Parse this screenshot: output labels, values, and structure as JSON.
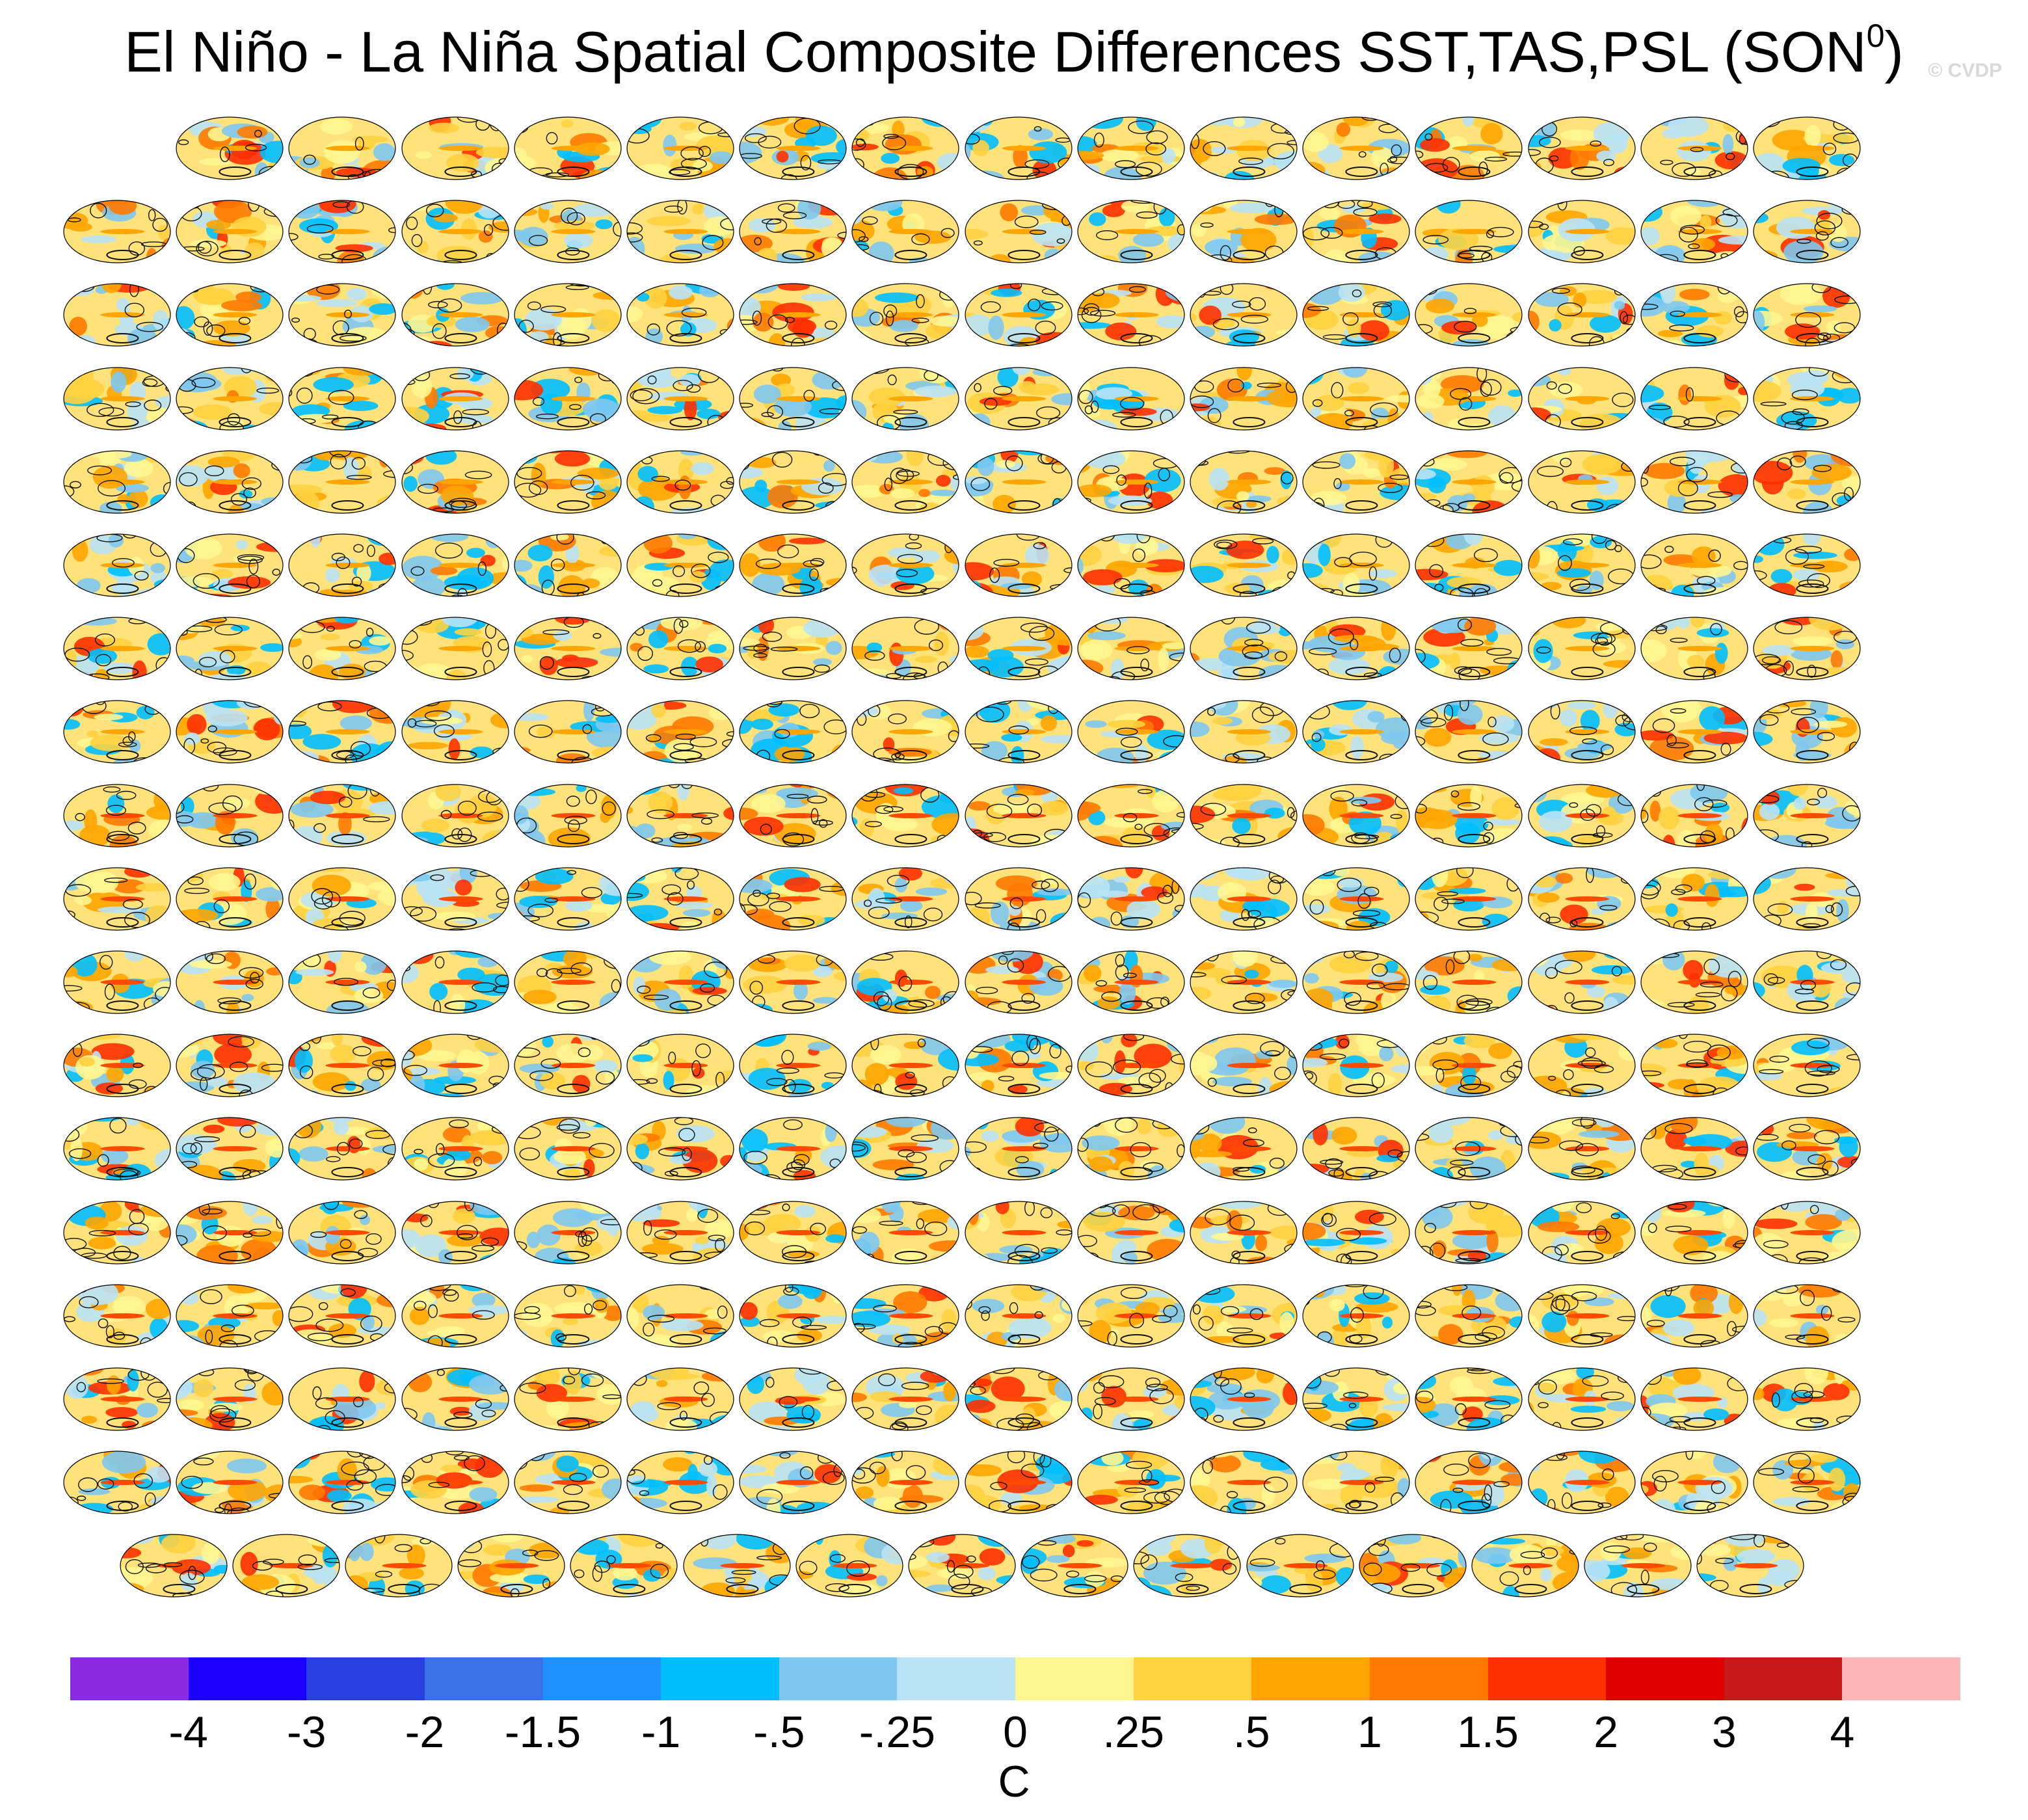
{
  "chart_data": {
    "type": "heatmap",
    "title": "El Niño - La Niña Spatial Composite Differences SST,TAS,PSL (SON",
    "title_superscript": "0",
    "title_close": ")",
    "watermark": "© CVDP",
    "panel_grid": {
      "rows": [
        {
          "count": 15,
          "offset": 1
        },
        {
          "count": 16,
          "offset": 0
        },
        {
          "count": 16,
          "offset": 0
        },
        {
          "count": 16,
          "offset": 0
        },
        {
          "count": 16,
          "offset": 0
        },
        {
          "count": 16,
          "offset": 0
        },
        {
          "count": 16,
          "offset": 0
        },
        {
          "count": 16,
          "offset": 0
        },
        {
          "count": 16,
          "offset": 0
        },
        {
          "count": 16,
          "offset": 0
        },
        {
          "count": 16,
          "offset": 0
        },
        {
          "count": 16,
          "offset": 0
        },
        {
          "count": 16,
          "offset": 0
        },
        {
          "count": 16,
          "offset": 0
        },
        {
          "count": 16,
          "offset": 0
        },
        {
          "count": 16,
          "offset": 0
        },
        {
          "count": 16,
          "offset": 0
        },
        {
          "count": 15,
          "offset": 0.5
        }
      ]
    },
    "colorbar": {
      "label": "C",
      "tick_labels": [
        "-4",
        "-3",
        "-2",
        "-1.5",
        "-1",
        "-.5",
        "-.25",
        "0",
        ".25",
        ".5",
        "1",
        "1.5",
        "2",
        "3",
        "4"
      ],
      "colors": [
        "#8a2be2",
        "#1a00ff",
        "#2a3fe0",
        "#3a72e6",
        "#1e90ff",
        "#00bfff",
        "#7ec8f0",
        "#b9e3f5",
        "#fff68f",
        "#ffd23f",
        "#ffa500",
        "#ff7a00",
        "#ff3000",
        "#e00000",
        "#c81818",
        "#ffb6b6"
      ]
    }
  }
}
